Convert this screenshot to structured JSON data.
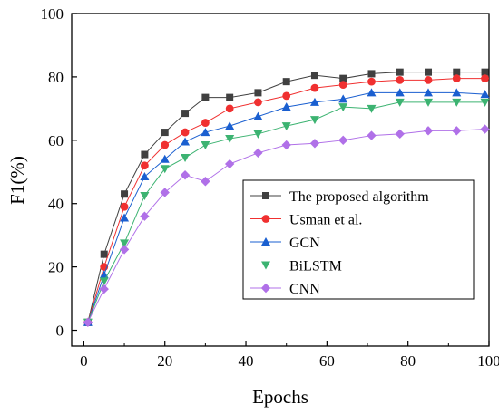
{
  "chart_data": {
    "type": "line",
    "title": "",
    "xlabel": "Epochs",
    "ylabel": "F1(%)",
    "xlim": [
      -3,
      100
    ],
    "ylim": [
      -5,
      100
    ],
    "xticks": [
      0,
      20,
      40,
      60,
      80,
      100
    ],
    "yticks": [
      0,
      20,
      40,
      60,
      80,
      100
    ],
    "grid": false,
    "legend_position": "right-center",
    "x": [
      1,
      5,
      10,
      15,
      20,
      25,
      30,
      36,
      43,
      50,
      57,
      64,
      71,
      78,
      85,
      92,
      99
    ],
    "series": [
      {
        "name": "The proposed algorithm",
        "marker": "square",
        "color": "#404040",
        "line_color": "#404040",
        "values": [
          2.5,
          24,
          43,
          55.5,
          62.5,
          68.5,
          73.5,
          73.5,
          75,
          78.5,
          80.5,
          79.5,
          81,
          81.5,
          81.5,
          81.5,
          81.5
        ]
      },
      {
        "name": "Usman et al.",
        "marker": "circle",
        "color": "#f03030",
        "line_color": "#f03030",
        "values": [
          2.5,
          20,
          39,
          52,
          58.5,
          62.5,
          65.5,
          70,
          72,
          74,
          76.5,
          77.5,
          78.5,
          79,
          79,
          79.5,
          79.5
        ]
      },
      {
        "name": "GCN",
        "marker": "triangle-up",
        "color": "#1a5fd0",
        "line_color": "#1a5fd0",
        "values": [
          2.5,
          17.5,
          35.5,
          48.5,
          54,
          59.5,
          62.5,
          64.5,
          67.5,
          70.5,
          72,
          73,
          75,
          75,
          75,
          75,
          74.5
        ]
      },
      {
        "name": "BiLSTM",
        "marker": "triangle-down",
        "color": "#3cb371",
        "line_color": "#3cb371",
        "values": [
          2.5,
          15.5,
          27.5,
          42.5,
          51,
          54.5,
          58.5,
          60.5,
          62,
          64.5,
          66.5,
          70.5,
          70,
          72,
          72,
          72,
          72
        ]
      },
      {
        "name": "CNN",
        "marker": "diamond",
        "color": "#b070e8",
        "line_color": "#b070e8",
        "values": [
          2.5,
          13,
          25.5,
          36,
          43.5,
          49,
          47,
          52.5,
          56,
          58.5,
          59,
          60,
          61.5,
          62,
          63,
          63,
          63.5
        ]
      }
    ]
  }
}
